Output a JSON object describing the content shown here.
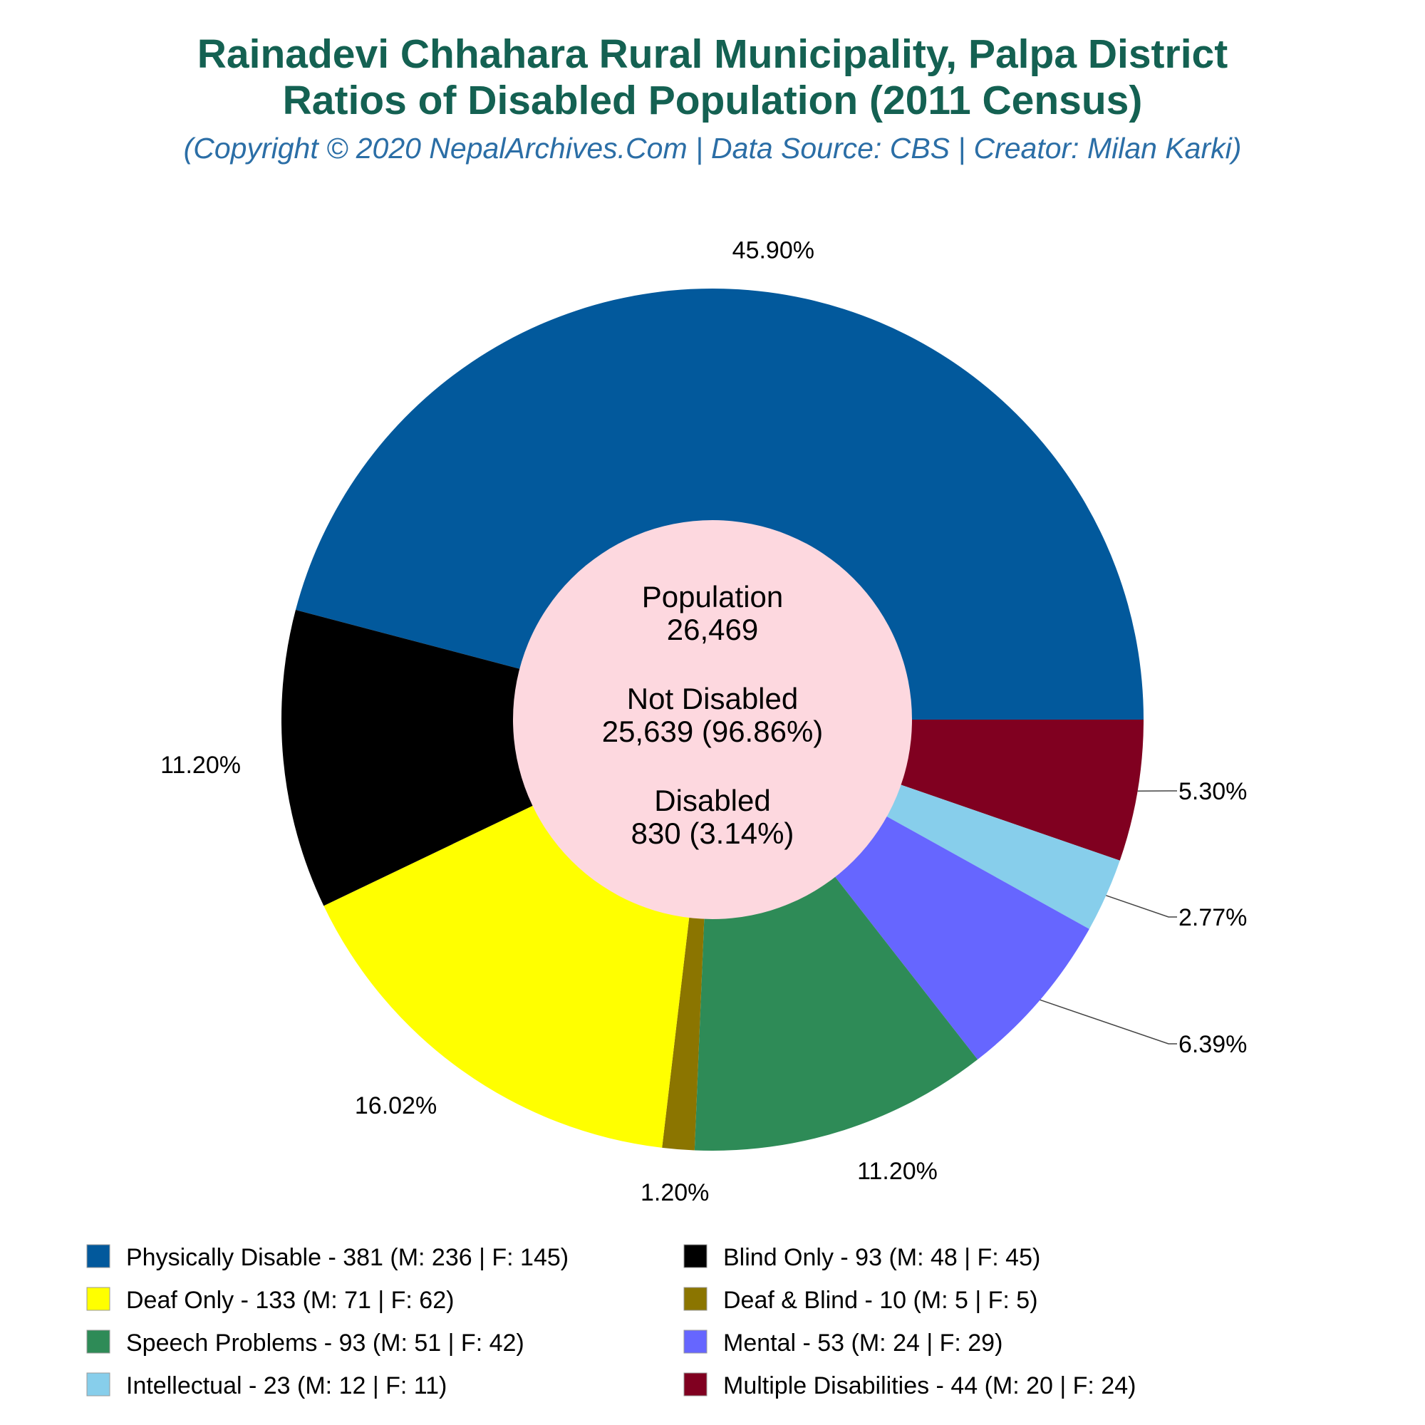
{
  "chart_data": {
    "type": "pie",
    "title_line1": "Rainadevi Chhahara Rural Municipality, Palpa District",
    "title_line2": "Ratios of Disabled Population (2011 Census)",
    "subtitle": "(Copyright © 2020 NepalArchives.Com | Data Source: CBS | Creator: Milan Karki)",
    "center": {
      "population_label": "Population",
      "population_value": "26,469",
      "not_disabled_label": "Not Disabled",
      "not_disabled_value": "25,639 (96.86%)",
      "disabled_label": "Disabled",
      "disabled_value": "830 (3.14%)"
    },
    "slices": [
      {
        "label": "Physically Disable - 381 (M: 236 | F: 145)",
        "value": 381,
        "percent_label": "45.90%",
        "color": "#02599c"
      },
      {
        "label": "Multiple Disabilities - 44 (M: 20 | F: 24)",
        "value": 44,
        "percent_label": "5.30%",
        "color": "#800020"
      },
      {
        "label": "Intellectual - 23 (M: 12 | F: 11)",
        "value": 23,
        "percent_label": "2.77%",
        "color": "#87ceeb"
      },
      {
        "label": "Mental - 53 (M: 24 | F: 29)",
        "value": 53,
        "percent_label": "6.39%",
        "color": "#6666ff"
      },
      {
        "label": "Speech Problems - 93 (M: 51 | F: 42)",
        "value": 93,
        "percent_label": "11.20%",
        "color": "#2e8b57"
      },
      {
        "label": "Deaf & Blind - 10 (M: 5 | F: 5)",
        "value": 10,
        "percent_label": "1.20%",
        "color": "#8b7500"
      },
      {
        "label": "Deaf Only - 133 (M: 71 | F: 62)",
        "value": 133,
        "percent_label": "16.02%",
        "color": "#ffff00"
      },
      {
        "label": "Blind Only - 93 (M: 48 | F: 45)",
        "value": 93,
        "percent_label": "11.20%",
        "color": "#000000"
      }
    ],
    "legend_order": [
      0,
      7,
      6,
      5,
      4,
      3,
      2,
      1
    ],
    "legend_position": "bottom",
    "center_color": "#fdd8df"
  }
}
